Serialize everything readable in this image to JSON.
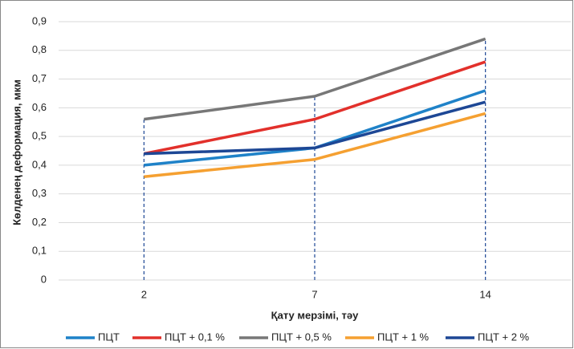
{
  "chart_data": {
    "type": "line",
    "y_label": "Көлденең деформация, мкм",
    "x_label": "Қату мерзімі, тәу",
    "categories": [
      "2",
      "7",
      "14"
    ],
    "series": [
      {
        "name": "ПЦТ",
        "color": "#1f82c8",
        "values": [
          0.4,
          0.46,
          0.66
        ]
      },
      {
        "name": "ПЦТ + 0,1 %",
        "color": "#e2302b",
        "values": [
          0.44,
          0.56,
          0.76
        ]
      },
      {
        "name": "ПЦТ + 0,5 %",
        "color": "#777777",
        "values": [
          0.56,
          0.64,
          0.84
        ]
      },
      {
        "name": "ПЦТ + 1 %",
        "color": "#f5a031",
        "values": [
          0.36,
          0.42,
          0.58
        ]
      },
      {
        "name": "ПЦТ + 2 %",
        "color": "#1d4795",
        "values": [
          0.44,
          0.46,
          0.62
        ]
      }
    ],
    "ylim": [
      0,
      0.9
    ],
    "yticks": [
      0,
      {
        "value": 0.1,
        "label": "0,1"
      },
      {
        "value": 0.2,
        "label": "0,2"
      },
      {
        "value": 0.3,
        "label": "0,3"
      },
      {
        "value": 0.4,
        "label": "0,4"
      },
      {
        "value": 0.5,
        "label": "0,5"
      },
      {
        "value": 0.6,
        "label": "0,6"
      },
      {
        "value": 0.7,
        "label": "0,7"
      },
      {
        "value": 0.8,
        "label": "0,8"
      },
      {
        "value": 0.9,
        "label": "0,9"
      }
    ],
    "grid": true,
    "legend": "bottom"
  }
}
